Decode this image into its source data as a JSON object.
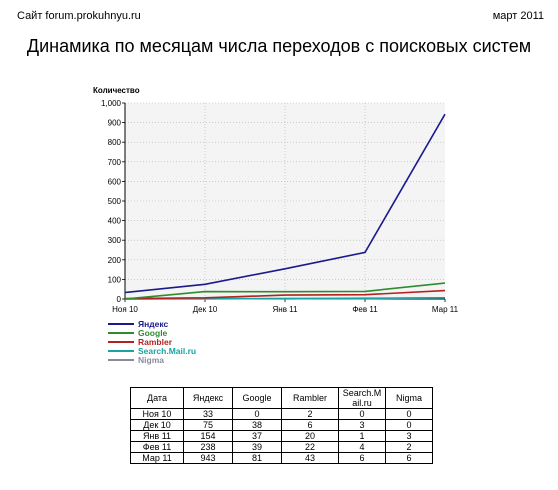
{
  "header": {
    "site": "Сайт forum.prokuhnyu.ru",
    "date": "март 2011",
    "title": "Динамика по месяцам числа переходов с поисковых систем"
  },
  "chart_data": {
    "type": "line",
    "ylabel": "Количество",
    "categories": [
      "Ноя 10",
      "Дек 10",
      "Янв 11",
      "Фев 11",
      "Мар 11"
    ],
    "ylim": [
      0,
      1000
    ],
    "yticks": [
      "0",
      "100",
      "200",
      "300",
      "400",
      "500",
      "600",
      "700",
      "800",
      "900",
      "1,000"
    ],
    "grid": true,
    "legend_position": "bottom-left",
    "series": [
      {
        "name": "Яндекс",
        "color": "#1a1a8c",
        "values": [
          33,
          75,
          154,
          238,
          943
        ]
      },
      {
        "name": "Google",
        "color": "#2e8b2e",
        "values": [
          0,
          38,
          37,
          39,
          81
        ]
      },
      {
        "name": "Rambler",
        "color": "#b22222",
        "values": [
          2,
          6,
          20,
          22,
          43
        ]
      },
      {
        "name": "Search.Mail.ru",
        "color": "#1aa3a3",
        "values": [
          0,
          3,
          1,
          4,
          6
        ]
      },
      {
        "name": "Nigma",
        "color": "#8a8a9e",
        "values": [
          0,
          0,
          3,
          2,
          6
        ]
      }
    ]
  },
  "table": {
    "headers": [
      "Дата",
      "Яндекс",
      "Google",
      "Rambler",
      "Search.Mail.ru",
      "Nigma"
    ],
    "rows": [
      [
        "Ноя 10",
        "33",
        "0",
        "2",
        "0",
        "0"
      ],
      [
        "Дек 10",
        "75",
        "38",
        "6",
        "3",
        "0"
      ],
      [
        "Янв 11",
        "154",
        "37",
        "20",
        "1",
        "3"
      ],
      [
        "Фев 11",
        "238",
        "39",
        "22",
        "4",
        "2"
      ],
      [
        "Мар 11",
        "943",
        "81",
        "43",
        "6",
        "6"
      ]
    ]
  }
}
